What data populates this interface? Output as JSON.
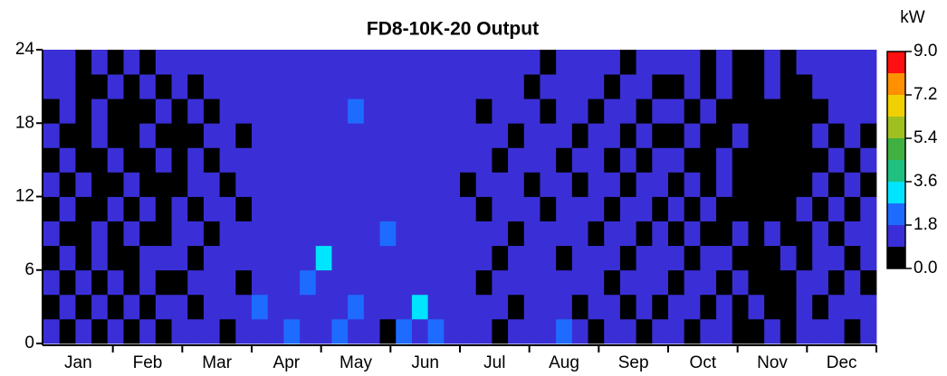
{
  "chart_data": {
    "type": "heatmap",
    "title": "FD8-10K-20 Output",
    "categories": [
      "Jan",
      "Feb",
      "Mar",
      "Apr",
      "May",
      "Jun",
      "Jul",
      "Aug",
      "Sep",
      "Oct",
      "Nov",
      "Dec"
    ],
    "ylim": [
      0,
      24
    ],
    "yticks": [
      0,
      6,
      12,
      18,
      24
    ],
    "colorbar": {
      "label": "kW",
      "clim": [
        0,
        9
      ],
      "bounds": [
        0,
        0.9,
        1.8,
        2.7,
        3.6,
        4.5,
        5.4,
        6.3,
        7.2,
        8.1,
        9
      ],
      "colors": [
        "#000000",
        "#3a2fd6",
        "#1e6cff",
        "#00e5ff",
        "#20c080",
        "#40b040",
        "#a0c020",
        "#f0d000",
        "#ff9000",
        "#ff1010"
      ],
      "ticks": [
        {
          "value": 0,
          "label": "0.0"
        },
        1.8,
        3.6,
        5.4,
        7.2,
        {
          "value": 9,
          "label": "9.0"
        }
      ]
    },
    "z": [
      [
        1.2,
        0,
        1.4,
        0.3,
        1.5,
        0,
        1.3,
        0.5,
        1.6,
        1.4,
        1.2,
        0,
        1.7,
        1.5,
        1.3,
        2.1,
        1.4,
        1.6,
        2.4,
        1.5,
        1.3,
        0,
        1.8,
        1.4,
        2.2,
        1.5,
        1.3,
        1.6,
        0.4,
        1.5,
        1.2,
        1.4,
        2.0,
        1.3,
        0,
        1.5,
        1.2,
        0.6,
        1.4,
        1.3,
        0,
        1.5,
        1.2,
        0.4,
        0,
        1.3,
        0,
        1.4,
        1.6,
        1.3,
        0,
        1.5
      ],
      [
        0,
        1.3,
        0.6,
        1.2,
        0,
        1.4,
        0,
        1.3,
        1.2,
        0,
        1.5,
        1.3,
        1.4,
        2.0,
        1.4,
        1.3,
        1.6,
        1.5,
        1.2,
        2.3,
        1.4,
        1.5,
        1.3,
        2.8,
        1.4,
        1.2,
        1.5,
        1.3,
        1.4,
        0,
        1.6,
        1.2,
        1.3,
        0.5,
        1.4,
        1.2,
        0,
        1.3,
        0,
        1.2,
        1.4,
        0,
        1.3,
        0,
        1.2,
        0,
        0.3,
        1.3,
        0,
        1.5,
        1.2,
        1.3
      ],
      [
        1.3,
        0,
        1.2,
        0,
        1.4,
        0.2,
        1.3,
        0,
        0,
        1.4,
        1.3,
        1.5,
        0,
        1.4,
        1.6,
        1.2,
        2.2,
        1.3,
        1.5,
        1.4,
        1.7,
        1.2,
        1.3,
        1.5,
        1.2,
        1.6,
        1.4,
        0,
        1.5,
        1.3,
        1.2,
        1.4,
        1.6,
        1.3,
        1.2,
        0,
        1.4,
        1.3,
        1.2,
        0,
        1.3,
        1.4,
        0,
        1.2,
        0,
        0.4,
        0,
        1.2,
        1.5,
        0,
        1.4,
        0
      ],
      [
        0,
        1.2,
        0,
        1.3,
        0,
        0,
        1.2,
        1.4,
        1.3,
        0,
        1.2,
        1.4,
        1.5,
        1.3,
        1.2,
        1.6,
        1.4,
        3.2,
        1.3,
        1.5,
        1.2,
        1.4,
        1.6,
        1.3,
        1.5,
        1.2,
        1.3,
        1.5,
        0,
        1.2,
        1.4,
        1.3,
        0,
        1.5,
        1.3,
        1.2,
        0,
        1.2,
        1.3,
        1.2,
        0,
        1.3,
        1.2,
        0,
        0,
        0,
        1.2,
        0,
        1.3,
        1.2,
        0,
        1.4
      ],
      [
        1.2,
        0,
        0,
        1.2,
        0.5,
        1.3,
        0,
        0,
        1.4,
        1.2,
        0,
        1.3,
        1.2,
        1.5,
        1.3,
        1.2,
        1.4,
        1.6,
        1.2,
        1.3,
        1.5,
        2.6,
        1.2,
        1.4,
        1.3,
        1.5,
        1.2,
        1.4,
        1.3,
        0,
        1.5,
        1.2,
        1.4,
        1.3,
        0,
        1.2,
        1.3,
        0,
        1.2,
        0,
        1.3,
        0,
        0,
        1.2,
        0,
        1.3,
        0,
        0,
        1.2,
        0,
        1.3,
        1.2
      ],
      [
        0,
        1.3,
        0,
        0,
        1.2,
        0,
        1.2,
        0,
        1.3,
        0,
        1.4,
        1.2,
        0,
        1.3,
        1.4,
        1.5,
        1.2,
        1.3,
        1.4,
        1.2,
        1.6,
        1.3,
        1.4,
        1.2,
        1.3,
        1.4,
        1.3,
        0,
        1.2,
        1.4,
        1.3,
        0,
        1.2,
        1.4,
        1.3,
        0,
        1.2,
        1.3,
        0,
        1.3,
        0,
        1.2,
        0,
        0,
        0,
        0,
        0,
        1.2,
        0,
        1.3,
        0,
        1.2
      ],
      [
        1.3,
        0,
        1.2,
        0,
        0,
        1.2,
        0,
        0,
        0,
        1.3,
        1.2,
        0,
        1.4,
        1.2,
        1.5,
        1.3,
        1.4,
        1.2,
        1.6,
        1.3,
        1.4,
        1.5,
        1.2,
        1.3,
        1.4,
        1.2,
        0,
        1.3,
        1.4,
        1.2,
        0,
        1.3,
        1.2,
        0,
        1.4,
        1.3,
        0,
        1.2,
        1.3,
        0,
        1.2,
        0,
        1.3,
        0,
        0,
        0,
        0,
        0,
        1.3,
        0,
        1.2,
        0
      ],
      [
        0,
        1.2,
        0,
        0,
        1.3,
        0,
        0,
        1.2,
        0,
        1.2,
        0,
        1.4,
        1.3,
        1.4,
        1.2,
        1.3,
        1.5,
        1.4,
        1.2,
        1.3,
        1.2,
        1.4,
        1.3,
        1.5,
        1.2,
        1.3,
        1.4,
        1.2,
        0,
        1.3,
        1.2,
        1.4,
        0,
        1.3,
        1.2,
        0,
        1.3,
        0,
        1.2,
        1.2,
        0,
        0,
        1.2,
        0,
        0,
        0,
        0,
        0,
        0,
        1.3,
        0,
        1.2
      ],
      [
        1.2,
        0,
        0,
        1.2,
        0,
        0,
        1.3,
        0,
        0,
        0,
        1.2,
        1.3,
        0,
        1.3,
        1.4,
        1.2,
        1.3,
        1.2,
        1.4,
        1.5,
        1.3,
        1.2,
        1.4,
        1.3,
        1.2,
        1.4,
        1.2,
        1.3,
        1.2,
        0,
        1.4,
        1.2,
        1.3,
        0,
        1.2,
        1.3,
        0,
        1.2,
        0,
        0,
        1.3,
        0,
        0,
        1.2,
        0,
        0,
        0,
        0,
        1.2,
        0,
        1.3,
        0
      ],
      [
        0,
        1.3,
        0,
        1.2,
        0,
        0,
        0,
        1.2,
        0,
        1.2,
        0,
        1.3,
        1.2,
        1.2,
        1.3,
        1.5,
        1.2,
        1.4,
        1.3,
        2.4,
        1.2,
        1.3,
        1.2,
        1.4,
        1.3,
        1.2,
        1.3,
        0,
        1.4,
        1.2,
        1.3,
        0,
        1.2,
        1.3,
        0,
        1.2,
        1.3,
        0,
        1.2,
        1.2,
        0,
        1.2,
        0,
        0,
        0,
        0,
        0,
        0,
        0,
        1.2,
        1.3,
        1.2
      ],
      [
        1.3,
        1.2,
        0,
        0,
        1.2,
        0,
        1.2,
        0,
        1.3,
        0,
        1.2,
        1.4,
        1.3,
        1.3,
        1.2,
        1.4,
        1.3,
        1.5,
        1.2,
        1.4,
        1.3,
        1.2,
        1.5,
        1.3,
        1.4,
        1.2,
        1.2,
        1.4,
        1.3,
        1.2,
        0,
        1.3,
        1.2,
        1.4,
        1.2,
        0,
        1.2,
        1.3,
        0,
        0,
        1.2,
        0,
        1.3,
        0,
        0,
        1.2,
        0,
        0,
        1.3,
        1.2,
        1.4,
        1.3
      ],
      [
        1.2,
        1.3,
        0,
        1.2,
        0,
        1.3,
        0,
        1.2,
        1.4,
        1.2,
        1.3,
        1.2,
        1.4,
        1.4,
        1.5,
        1.3,
        1.2,
        1.4,
        1.3,
        1.2,
        1.4,
        1.3,
        1.2,
        1.4,
        1.3,
        1.5,
        1.3,
        1.2,
        1.4,
        1.3,
        1.2,
        0,
        1.3,
        1.2,
        1.4,
        1.3,
        0,
        1.2,
        1.3,
        1.2,
        1.3,
        0,
        1.2,
        0,
        0,
        1.3,
        0,
        1.2,
        1.3,
        1.4,
        1.5,
        1.2
      ]
    ]
  }
}
